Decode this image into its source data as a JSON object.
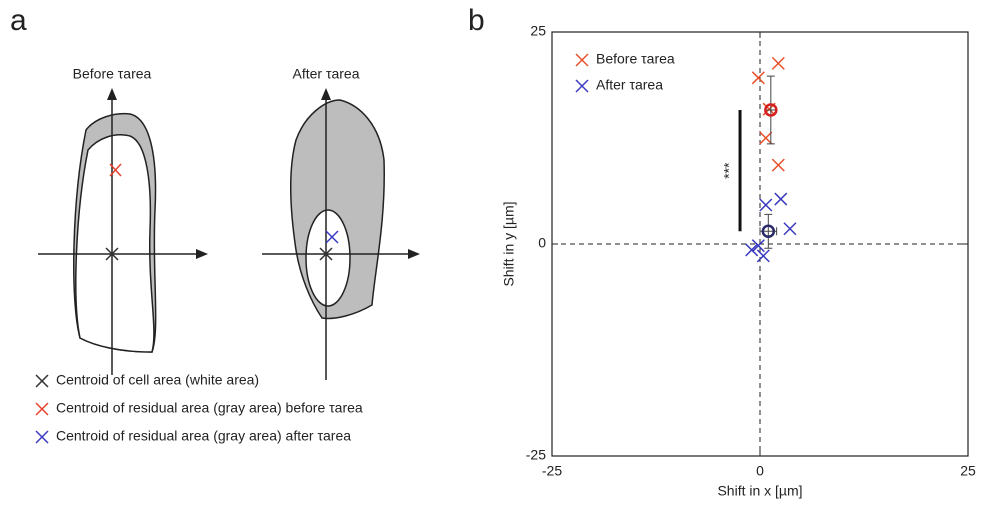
{
  "panel_a": {
    "label": "a",
    "before_title": "Before τarea",
    "after_title": "After τarea",
    "legend": [
      {
        "text": "Centroid of cell area (white area)",
        "color": "#333333"
      },
      {
        "text": "Centroid of residual area (gray area) before τarea",
        "color": "#e8402a"
      },
      {
        "text": "Centroid of residual area (gray area) after τarea",
        "color": "#3a3ac0"
      }
    ]
  },
  "chart_data": {
    "type": "scatter",
    "panel_label": "b",
    "xlabel": "Shift in x [µm]",
    "ylabel": "Shift in y [µm]",
    "xlim": [
      -25,
      25
    ],
    "ylim": [
      -25,
      25
    ],
    "xticks": [
      -25,
      0,
      25
    ],
    "yticks": [
      -25,
      0,
      25
    ],
    "legend": "upper left",
    "annotation": "***",
    "series": [
      {
        "name": "Before τarea",
        "color": "#e8502a",
        "mean_color": "#d42020",
        "x": [
          2.2,
          -0.2,
          0.7,
          2.2,
          1.1
        ],
        "values": [
          21.3,
          19.6,
          12.5,
          9.3,
          15.9
        ],
        "mean_x": 1.3,
        "mean_y": 15.8,
        "mean_xerr": 0.6,
        "mean_yerr": 4
      },
      {
        "name": "After τarea",
        "color": "#3a3ac0",
        "mean_color": "#2a2a6a",
        "x": [
          2.5,
          0.7,
          3.6,
          -1.0,
          -0.2,
          0.4
        ],
        "values": [
          5.3,
          4.6,
          1.8,
          -0.7,
          -0.2,
          -1.4
        ],
        "mean_x": 1.0,
        "mean_y": 1.5,
        "mean_xerr": 1,
        "mean_yerr": 2
      }
    ]
  }
}
